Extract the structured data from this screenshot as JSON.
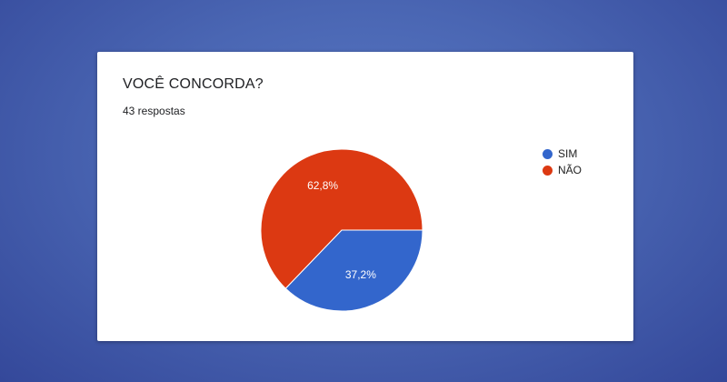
{
  "card": {
    "title": "VOCÊ CONCORDA?",
    "responses": "43 respostas"
  },
  "chart_data": {
    "type": "pie",
    "categories": [
      "SIM",
      "NÃO"
    ],
    "values": [
      37.2,
      62.8
    ],
    "labels": [
      "37,2%",
      "62,8%"
    ],
    "colors": [
      "#3366cc",
      "#dc3912"
    ],
    "legend": "right"
  }
}
